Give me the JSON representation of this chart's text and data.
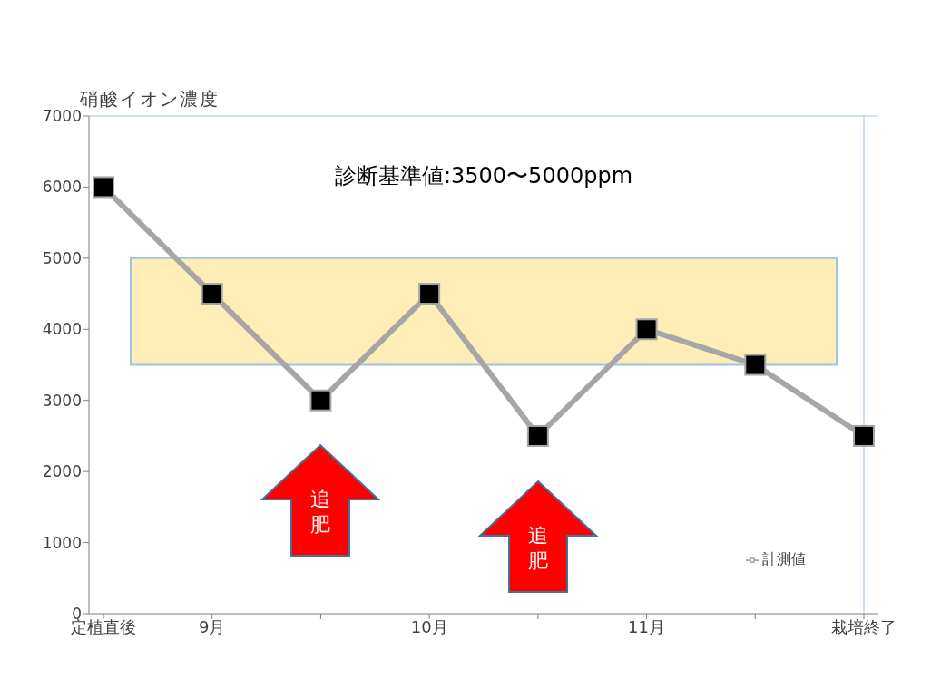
{
  "chart_data": {
    "type": "line",
    "ylabel": "硝酸イオン濃度",
    "categories": [
      "定植直後",
      "9月",
      null,
      "10月",
      null,
      "11月",
      null,
      "栽培終了"
    ],
    "series": [
      {
        "name": "計測値",
        "color": "#a6a6a6",
        "values": [
          6000,
          4500,
          3000,
          4500,
          2500,
          4000,
          3500,
          2500
        ]
      }
    ],
    "ylim": [
      0,
      7000
    ],
    "yticks": [
      0,
      1000,
      2000,
      3000,
      4000,
      5000,
      6000,
      7000
    ],
    "bands": [
      {
        "axis": "y",
        "from": 3500,
        "to": 5000,
        "color": "#ffe699"
      }
    ],
    "annotations": [
      "診断基準値:3500〜5000ppm",
      "追肥",
      "追肥"
    ],
    "marker": "square",
    "grid": false,
    "legend": "bottom right"
  }
}
